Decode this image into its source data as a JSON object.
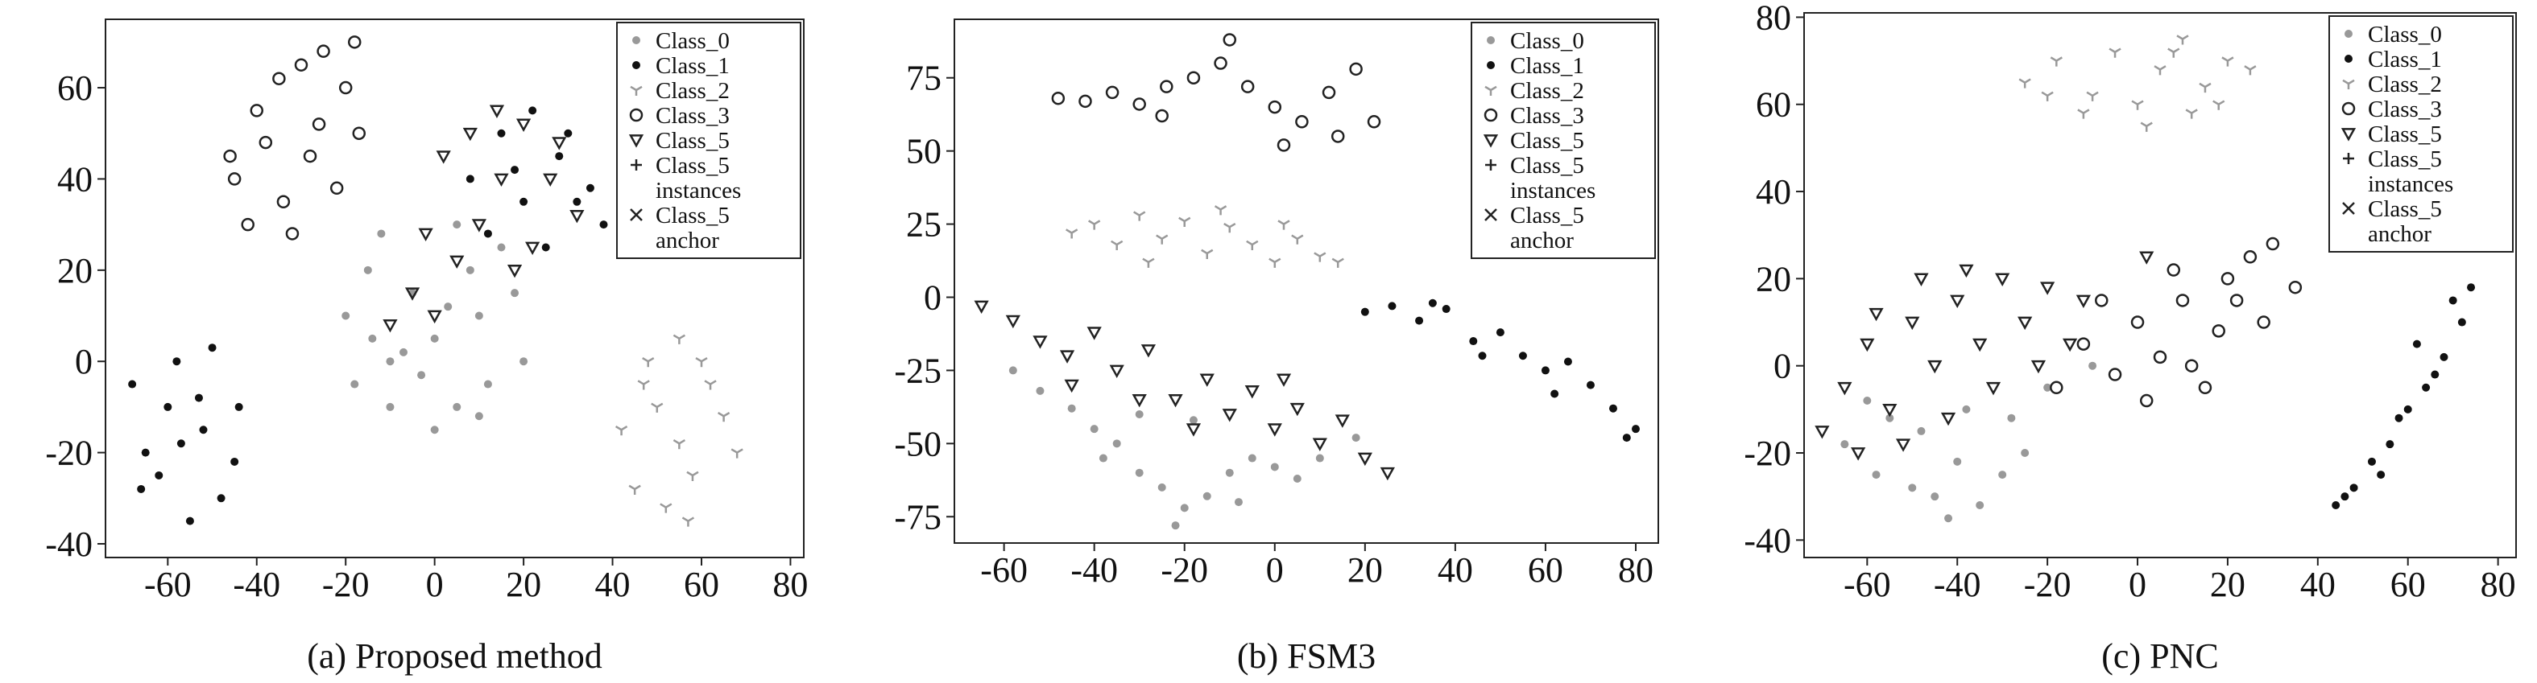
{
  "chart_data": [
    {
      "type": "scatter",
      "caption": "(a) Proposed method",
      "xlim": [
        -74,
        83
      ],
      "ylim": [
        -43,
        75
      ],
      "xticks": [
        -60,
        -40,
        -20,
        0,
        20,
        40,
        60,
        80
      ],
      "yticks": [
        -40,
        -20,
        0,
        20,
        40,
        60
      ],
      "legend": "upper right",
      "series": [
        {
          "name": "Class_0",
          "color": "#999999",
          "marker": "dot",
          "x": [
            -20,
            -15,
            -10,
            -5,
            0,
            5,
            10,
            15,
            -10,
            0,
            20,
            5,
            -18,
            12,
            -3,
            8,
            -12,
            3,
            18,
            -7,
            10,
            -14
          ],
          "y": [
            10,
            20,
            0,
            15,
            5,
            -10,
            10,
            25,
            -10,
            -15,
            0,
            30,
            -5,
            -5,
            -3,
            20,
            28,
            12,
            15,
            2,
            -12,
            5
          ]
        },
        {
          "name": "Class_1",
          "color": "#111111",
          "marker": "dot",
          "x": [
            -68,
            -62,
            -58,
            -52,
            -48,
            -44,
            -65,
            -55,
            -50,
            -60,
            -45,
            -57,
            -53,
            -66,
            8,
            15,
            22,
            28,
            35,
            38,
            12,
            20,
            30,
            25,
            18,
            32
          ],
          "y": [
            -5,
            -25,
            0,
            -15,
            -30,
            -10,
            -20,
            -35,
            3,
            -10,
            -22,
            -18,
            -8,
            -28,
            40,
            50,
            55,
            45,
            38,
            30,
            28,
            35,
            50,
            25,
            42,
            35
          ]
        },
        {
          "name": "Class_2",
          "color": "#999999",
          "marker": "tri",
          "x": [
            42,
            48,
            55,
            62,
            68,
            45,
            52,
            58,
            65,
            50,
            60,
            55,
            57,
            47
          ],
          "y": [
            -15,
            0,
            5,
            -5,
            -20,
            -28,
            -32,
            -25,
            -12,
            -10,
            0,
            -18,
            -35,
            -5
          ]
        },
        {
          "name": "Class_3",
          "color": "#222222",
          "marker": "circle",
          "x": [
            -45,
            -40,
            -35,
            -30,
            -25,
            -20,
            -18,
            -42,
            -32,
            -28,
            -22,
            -38,
            -26,
            -34,
            -17,
            -46
          ],
          "y": [
            40,
            55,
            62,
            65,
            68,
            60,
            70,
            30,
            28,
            45,
            38,
            48,
            52,
            35,
            50,
            45
          ]
        },
        {
          "name": "Class_5",
          "color": "#222222",
          "marker": "triangle",
          "x": [
            2,
            8,
            14,
            20,
            26,
            32,
            10,
            5,
            18,
            -5,
            -2,
            0,
            15,
            28,
            -10,
            22
          ],
          "y": [
            45,
            50,
            55,
            52,
            40,
            32,
            30,
            22,
            20,
            15,
            28,
            10,
            40,
            48,
            8,
            25
          ]
        },
        {
          "name": "Class_5 instances",
          "color": "#222222",
          "marker": "plus",
          "x": [],
          "y": []
        },
        {
          "name": "Class_5 anchor",
          "color": "#222222",
          "marker": "x",
          "x": [],
          "y": []
        }
      ]
    },
    {
      "type": "scatter",
      "caption": "(b) FSM3",
      "xlim": [
        -71,
        85
      ],
      "ylim": [
        -84,
        95
      ],
      "xticks": [
        -60,
        -40,
        -20,
        0,
        20,
        40,
        60,
        80
      ],
      "yticks": [
        -75,
        -50,
        -25,
        0,
        25,
        50,
        75
      ],
      "legend": "upper right",
      "series": [
        {
          "name": "Class_0",
          "color": "#999999",
          "marker": "dot",
          "x": [
            -58,
            -52,
            -45,
            -40,
            -35,
            -30,
            -25,
            -20,
            -15,
            -10,
            -5,
            0,
            5,
            10,
            18,
            -30,
            -18,
            -8,
            -38,
            -22
          ],
          "y": [
            -25,
            -32,
            -38,
            -45,
            -50,
            -60,
            -65,
            -72,
            -68,
            -60,
            -55,
            -58,
            -62,
            -55,
            -48,
            -40,
            -42,
            -70,
            -55,
            -78
          ]
        },
        {
          "name": "Class_1",
          "color": "#111111",
          "marker": "dot",
          "x": [
            20,
            26,
            32,
            38,
            44,
            50,
            55,
            60,
            65,
            70,
            75,
            80,
            35,
            62,
            78,
            46
          ],
          "y": [
            -5,
            -3,
            -8,
            -4,
            -15,
            -12,
            -20,
            -25,
            -22,
            -30,
            -38,
            -45,
            -2,
            -33,
            -48,
            -20
          ]
        },
        {
          "name": "Class_2",
          "color": "#999999",
          "marker": "tri",
          "x": [
            -45,
            -40,
            -35,
            -30,
            -25,
            -20,
            -15,
            -10,
            -5,
            0,
            5,
            10,
            14,
            -28,
            -12,
            2
          ],
          "y": [
            22,
            25,
            18,
            28,
            20,
            26,
            15,
            24,
            18,
            12,
            20,
            14,
            12,
            12,
            30,
            25
          ]
        },
        {
          "name": "Class_3",
          "color": "#222222",
          "marker": "circle",
          "x": [
            -48,
            -42,
            -36,
            -30,
            -24,
            -18,
            -12,
            -6,
            0,
            6,
            12,
            18,
            22,
            -10,
            2,
            14,
            -25
          ],
          "y": [
            68,
            67,
            70,
            66,
            72,
            75,
            80,
            72,
            65,
            60,
            70,
            78,
            60,
            88,
            52,
            55,
            62
          ]
        },
        {
          "name": "Class_5",
          "color": "#222222",
          "marker": "triangle",
          "x": [
            -65,
            -58,
            -52,
            -46,
            -40,
            -35,
            -28,
            -22,
            -15,
            -10,
            -5,
            0,
            5,
            10,
            15,
            20,
            25,
            -45,
            -30,
            -18,
            2
          ],
          "y": [
            -3,
            -8,
            -15,
            -20,
            -12,
            -25,
            -18,
            -35,
            -28,
            -40,
            -32,
            -45,
            -38,
            -50,
            -42,
            -55,
            -60,
            -30,
            -35,
            -45,
            -28
          ]
        },
        {
          "name": "Class_5 instances",
          "color": "#222222",
          "marker": "plus",
          "x": [],
          "y": []
        },
        {
          "name": "Class_5 anchor",
          "color": "#222222",
          "marker": "x",
          "x": [],
          "y": []
        }
      ]
    },
    {
      "type": "scatter",
      "caption": "(c) PNC",
      "xlim": [
        -74,
        84
      ],
      "ylim": [
        -44,
        81
      ],
      "xticks": [
        -60,
        -40,
        -20,
        0,
        20,
        40,
        60,
        80
      ],
      "yticks": [
        -40,
        -20,
        0,
        20,
        40,
        60,
        80
      ],
      "legend": "upper right",
      "series": [
        {
          "name": "Class_0",
          "color": "#999999",
          "marker": "dot",
          "x": [
            -65,
            -58,
            -50,
            -45,
            -40,
            -35,
            -30,
            -25,
            -55,
            -48,
            -38,
            -28,
            -20,
            -10,
            -60,
            -42
          ],
          "y": [
            -18,
            -25,
            -28,
            -30,
            -22,
            -32,
            -25,
            -20,
            -12,
            -15,
            -10,
            -12,
            -5,
            0,
            -8,
            -35
          ]
        },
        {
          "name": "Class_1",
          "color": "#111111",
          "marker": "dot",
          "x": [
            44,
            48,
            52,
            56,
            60,
            64,
            68,
            72,
            70,
            66,
            58,
            62,
            54,
            74,
            46
          ],
          "y": [
            -32,
            -28,
            -22,
            -18,
            -10,
            -5,
            2,
            10,
            15,
            -2,
            -12,
            5,
            -25,
            18,
            -30
          ]
        },
        {
          "name": "Class_2",
          "color": "#999999",
          "marker": "tri",
          "x": [
            -25,
            -18,
            -10,
            -5,
            0,
            5,
            10,
            15,
            20,
            25,
            -12,
            2,
            12,
            8,
            -20,
            18
          ],
          "y": [
            65,
            70,
            62,
            72,
            60,
            68,
            75,
            64,
            70,
            68,
            58,
            55,
            58,
            72,
            62,
            60
          ]
        },
        {
          "name": "Class_3",
          "color": "#222222",
          "marker": "circle",
          "x": [
            -18,
            -12,
            -5,
            0,
            5,
            10,
            15,
            20,
            25,
            30,
            35,
            -8,
            8,
            18,
            28,
            2,
            12,
            22
          ],
          "y": [
            -5,
            5,
            -2,
            10,
            2,
            15,
            -5,
            20,
            25,
            28,
            18,
            15,
            22,
            8,
            10,
            -8,
            0,
            15
          ]
        },
        {
          "name": "Class_5",
          "color": "#222222",
          "marker": "triangle",
          "x": [
            -70,
            -65,
            -60,
            -55,
            -50,
            -45,
            -40,
            -35,
            -30,
            -25,
            -20,
            -15,
            -62,
            -52,
            -42,
            -32,
            -22,
            -48,
            -38,
            -58,
            -12,
            2
          ],
          "y": [
            -15,
            -5,
            5,
            -10,
            10,
            0,
            15,
            5,
            20,
            10,
            18,
            5,
            -20,
            -18,
            -12,
            -5,
            0,
            20,
            22,
            12,
            15,
            25
          ]
        },
        {
          "name": "Class_5 instances",
          "color": "#222222",
          "marker": "plus",
          "x": [],
          "y": []
        },
        {
          "name": "Class_5 anchor",
          "color": "#222222",
          "marker": "x",
          "x": [],
          "y": []
        }
      ]
    }
  ]
}
